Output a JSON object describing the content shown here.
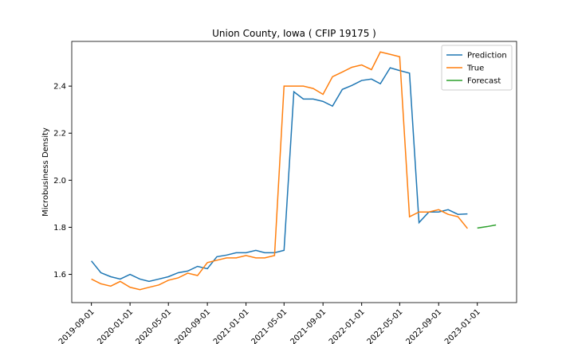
{
  "chart_data": {
    "type": "line",
    "title": "Union County, Iowa ( CFIP 19175 )",
    "ylabel": "Microbusiness Density",
    "legend": "upper right",
    "xlim": [
      "2019-07-01",
      "2023-05-05"
    ],
    "ylim": [
      1.48,
      2.59
    ],
    "xticks": [
      "2019-09-01",
      "2020-01-01",
      "2020-05-01",
      "2020-09-01",
      "2021-01-01",
      "2021-05-01",
      "2021-09-01",
      "2022-01-01",
      "2022-05-01",
      "2022-09-01",
      "2023-01-01"
    ],
    "yticks": [
      1.6,
      1.8,
      {
        "value": 2,
        "label": "2.0"
      },
      2.2,
      2.4
    ],
    "series": [
      {
        "name": "Prediction",
        "color": "#1f77b4",
        "x": [
          "2019-09-01",
          "2019-10-01",
          "2019-11-01",
          "2019-12-01",
          "2020-01-01",
          "2020-02-01",
          "2020-03-01",
          "2020-04-01",
          "2020-05-01",
          "2020-06-01",
          "2020-07-01",
          "2020-08-01",
          "2020-09-01",
          "2020-10-01",
          "2020-11-01",
          "2020-12-01",
          "2021-01-01",
          "2021-02-01",
          "2021-03-01",
          "2021-04-01",
          "2021-05-01",
          "2021-06-01",
          "2021-07-01",
          "2021-08-01",
          "2021-09-01",
          "2021-10-01",
          "2021-11-01",
          "2021-12-01",
          "2022-01-01",
          "2022-02-01",
          "2022-03-01",
          "2022-04-01",
          "2022-05-01",
          "2022-06-01",
          "2022-07-01",
          "2022-08-01",
          "2022-09-01",
          "2022-10-01",
          "2022-11-01",
          "2022-12-01"
        ],
        "values": [
          1.657,
          1.607,
          1.59,
          1.58,
          1.6,
          1.58,
          1.57,
          1.58,
          1.59,
          1.607,
          1.614,
          1.634,
          1.624,
          1.675,
          1.682,
          1.692,
          1.692,
          1.702,
          1.692,
          1.692,
          1.702,
          2.376,
          2.345,
          2.345,
          2.335,
          2.315,
          2.386,
          2.403,
          2.424,
          2.43,
          2.41,
          2.478,
          2.466,
          2.455,
          1.82,
          1.865,
          1.865,
          1.875,
          1.855,
          1.857
        ]
      },
      {
        "name": "True",
        "color": "#ff7f0e",
        "x": [
          "2019-09-01",
          "2019-10-01",
          "2019-11-01",
          "2019-12-01",
          "2020-01-01",
          "2020-02-01",
          "2020-03-01",
          "2020-04-01",
          "2020-05-01",
          "2020-06-01",
          "2020-07-01",
          "2020-08-01",
          "2020-09-01",
          "2020-10-01",
          "2020-11-01",
          "2020-12-01",
          "2021-01-01",
          "2021-02-01",
          "2021-03-01",
          "2021-04-01",
          "2021-05-01",
          "2021-06-01",
          "2021-07-01",
          "2021-08-01",
          "2021-09-01",
          "2021-10-01",
          "2021-11-01",
          "2021-12-01",
          "2022-01-01",
          "2022-02-01",
          "2022-03-01",
          "2022-04-01",
          "2022-05-01",
          "2022-06-01",
          "2022-07-01",
          "2022-08-01",
          "2022-09-01",
          "2022-10-01",
          "2022-11-01",
          "2022-12-01"
        ],
        "values": [
          1.58,
          1.56,
          1.55,
          1.57,
          1.545,
          1.535,
          1.545,
          1.555,
          1.575,
          1.585,
          1.605,
          1.595,
          1.65,
          1.66,
          1.67,
          1.67,
          1.68,
          1.67,
          1.67,
          1.68,
          2.4,
          2.4,
          2.4,
          2.39,
          2.365,
          2.44,
          2.46,
          2.48,
          2.49,
          2.47,
          2.545,
          2.535,
          2.525,
          1.845,
          1.865,
          1.865,
          1.875,
          1.855,
          1.845,
          1.795
        ]
      },
      {
        "name": "Forecast",
        "color": "#2ca02c",
        "x": [
          "2023-01-01",
          "2023-02-01",
          "2023-03-01"
        ],
        "values": [
          1.797,
          1.803,
          1.81
        ]
      }
    ]
  }
}
